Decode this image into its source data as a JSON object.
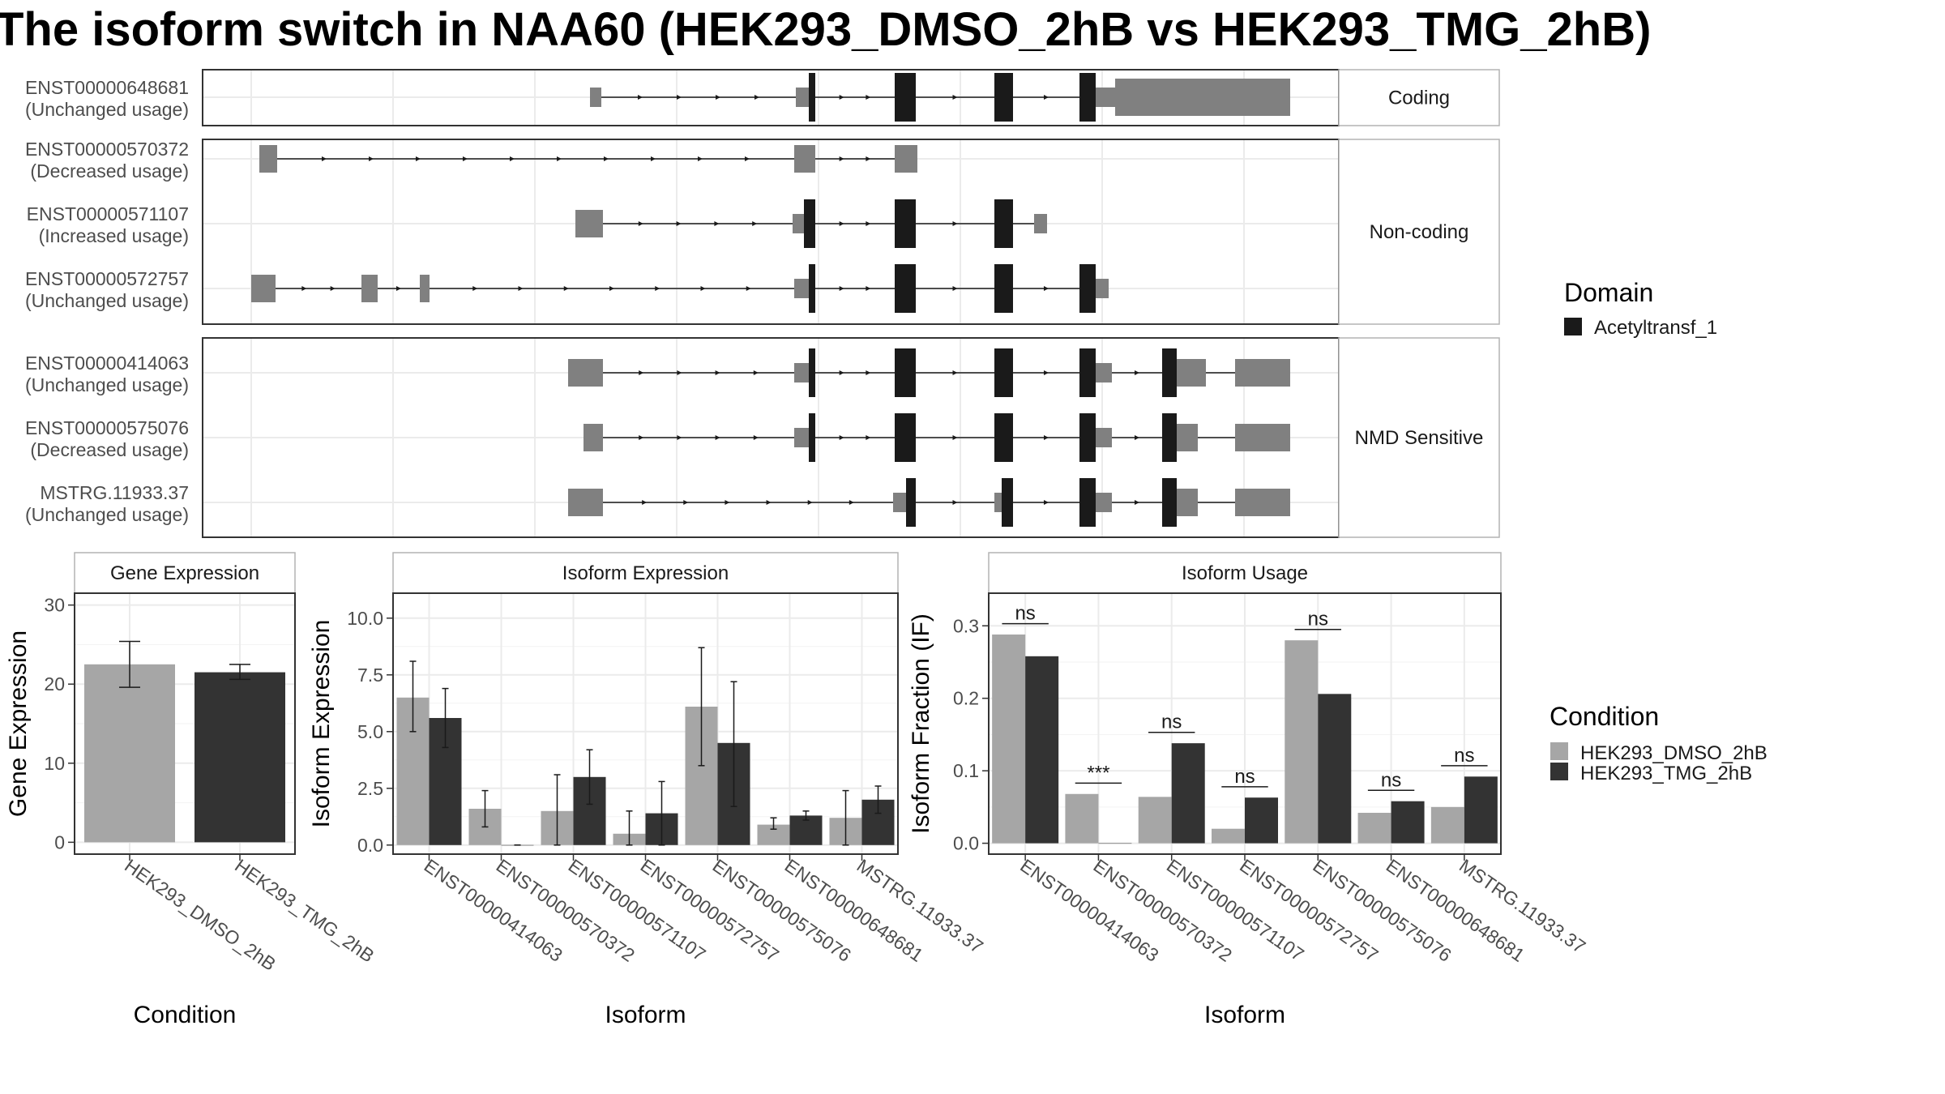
{
  "title": "The isoform switch in NAA60 (HEK293_DMSO_2hB vs HEK293_TMG_2hB)",
  "colors": {
    "dmso": "#a6a6a6",
    "tmg": "#333333",
    "exon_noncoding": "#808080",
    "domain": "#1a1a1a",
    "grid": "#ebebeb",
    "strip_text": "#1a1a1a",
    "axis_text": "#4d4d4d"
  },
  "structure": {
    "facets": [
      {
        "label": "Coding",
        "rows": 1
      },
      {
        "label": "Non-coding",
        "rows": 3
      },
      {
        "label": "NMD Sensitive",
        "rows": 3
      }
    ],
    "transcripts": [
      {
        "id": "ENST00000648681",
        "usage": "(Unchanged usage)",
        "facet": 0
      },
      {
        "id": "ENST00000570372",
        "usage": "(Decreased usage)",
        "facet": 1
      },
      {
        "id": "ENST00000571107",
        "usage": "(Increased usage)",
        "facet": 1
      },
      {
        "id": "ENST00000572757",
        "usage": "(Unchanged usage)",
        "facet": 1
      },
      {
        "id": "ENST00000414063",
        "usage": "(Unchanged usage)",
        "facet": 2
      },
      {
        "id": "ENST00000575076",
        "usage": "(Decreased usage)",
        "facet": 2
      },
      {
        "id": "MSTRG.11933.37",
        "usage": "(Unchanged usage)",
        "facet": 2
      }
    ],
    "legend_title": "Domain",
    "legend_items": [
      "Acetyltransf_1"
    ]
  },
  "chart_data": [
    {
      "type": "bar",
      "panel": "Gene Expression",
      "categories": [
        "HEK293_DMSO_2hB",
        "HEK293_TMG_2hB"
      ],
      "values": [
        22.5,
        21.5
      ],
      "err_low": [
        19.6,
        20.6
      ],
      "err_high": [
        25.4,
        22.5
      ],
      "xlabel": "Condition",
      "ylabel": "Gene Expression",
      "ylim": [
        -1.5,
        31.5
      ],
      "yticks": [
        0,
        10,
        20,
        30
      ],
      "ytick_labels": [
        "0",
        "10",
        "20",
        "30"
      ]
    },
    {
      "type": "bar",
      "panel": "Isoform Expression",
      "categories": [
        "ENST00000414063",
        "ENST00000570372",
        "ENST00000571107",
        "ENST00000572757",
        "ENST00000575076",
        "ENST00000648681",
        "MSTRG.11933.37"
      ],
      "series": [
        {
          "name": "HEK293_DMSO_2hB",
          "values": [
            6.5,
            1.6,
            1.5,
            0.5,
            6.1,
            0.9,
            1.2
          ],
          "err_low": [
            5.0,
            0.8,
            0.0,
            0.0,
            3.5,
            0.7,
            0.0
          ],
          "err_high": [
            8.1,
            2.4,
            3.1,
            1.5,
            8.7,
            1.2,
            2.4
          ]
        },
        {
          "name": "HEK293_TMG_2hB",
          "values": [
            5.6,
            0.0,
            3.0,
            1.4,
            4.5,
            1.3,
            2.0
          ],
          "err_low": [
            4.3,
            0.0,
            1.8,
            0.0,
            1.7,
            1.1,
            1.4
          ],
          "err_high": [
            6.9,
            0.0,
            4.2,
            2.8,
            7.2,
            1.5,
            2.6
          ]
        }
      ],
      "xlabel": "Isoform",
      "ylabel": "Isoform Expression",
      "ylim": [
        -0.4,
        11.1
      ],
      "yticks": [
        0,
        2.5,
        5,
        7.5,
        10
      ],
      "ytick_labels": [
        "0.0",
        "2.5",
        "5.0",
        "7.5",
        "10.0"
      ]
    },
    {
      "type": "bar",
      "panel": "Isoform Usage",
      "categories": [
        "ENST00000414063",
        "ENST00000570372",
        "ENST00000571107",
        "ENST00000572757",
        "ENST00000575076",
        "ENST00000648681",
        "MSTRG.11933.37"
      ],
      "series": [
        {
          "name": "HEK293_DMSO_2hB",
          "values": [
            0.288,
            0.068,
            0.064,
            0.02,
            0.28,
            0.042,
            0.05
          ]
        },
        {
          "name": "HEK293_TMG_2hB",
          "values": [
            0.258,
            0.0,
            0.138,
            0.063,
            0.206,
            0.058,
            0.092
          ]
        }
      ],
      "significance": [
        "ns",
        "***",
        "ns",
        "ns",
        "ns",
        "ns",
        "ns"
      ],
      "sig_y": [
        0.303,
        0.083,
        0.153,
        0.078,
        0.295,
        0.073,
        0.107
      ],
      "xlabel": "Isoform",
      "ylabel": "Isoform Fraction (IF)",
      "ylim": [
        -0.015,
        0.345
      ],
      "yticks": [
        0,
        0.1,
        0.2,
        0.3
      ],
      "ytick_labels": [
        "0.0",
        "0.1",
        "0.2",
        "0.3"
      ],
      "legend_title": "Condition",
      "legend_items": [
        "HEK293_DMSO_2hB",
        "HEK293_TMG_2hB"
      ]
    }
  ]
}
